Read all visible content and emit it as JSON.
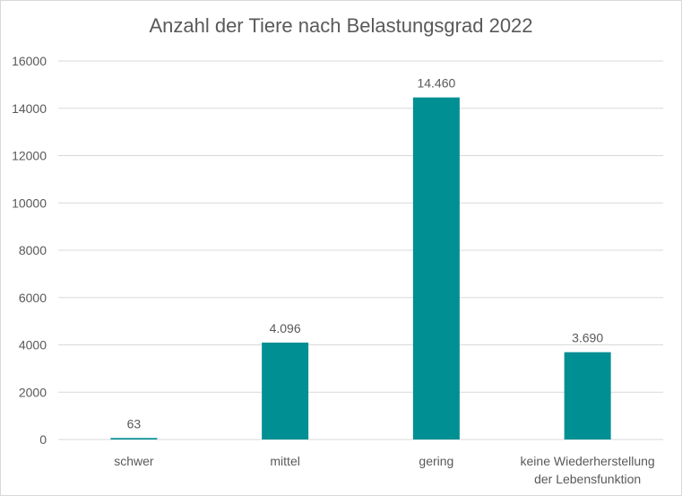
{
  "chart_data": {
    "type": "bar",
    "title": "Anzahl der Tiere nach Belastungsgrad 2022",
    "categories": [
      "schwer",
      "mittel",
      "gering",
      "keine Wiederherstellung der Lebensfunktion"
    ],
    "category_lines": [
      [
        "schwer"
      ],
      [
        "mittel"
      ],
      [
        "gering"
      ],
      [
        "keine Wiederherstellung",
        "der Lebensfunktion"
      ]
    ],
    "values": [
      63,
      4096,
      14460,
      3690
    ],
    "data_labels": [
      "63",
      "4.096",
      "14.460",
      "3.690"
    ],
    "xlabel": "",
    "ylabel": "",
    "ylim": [
      0,
      16000
    ],
    "yticks": [
      0,
      2000,
      4000,
      6000,
      8000,
      10000,
      12000,
      14000,
      16000
    ],
    "grid": true,
    "legend": "none",
    "bar_color": "#008F93"
  }
}
